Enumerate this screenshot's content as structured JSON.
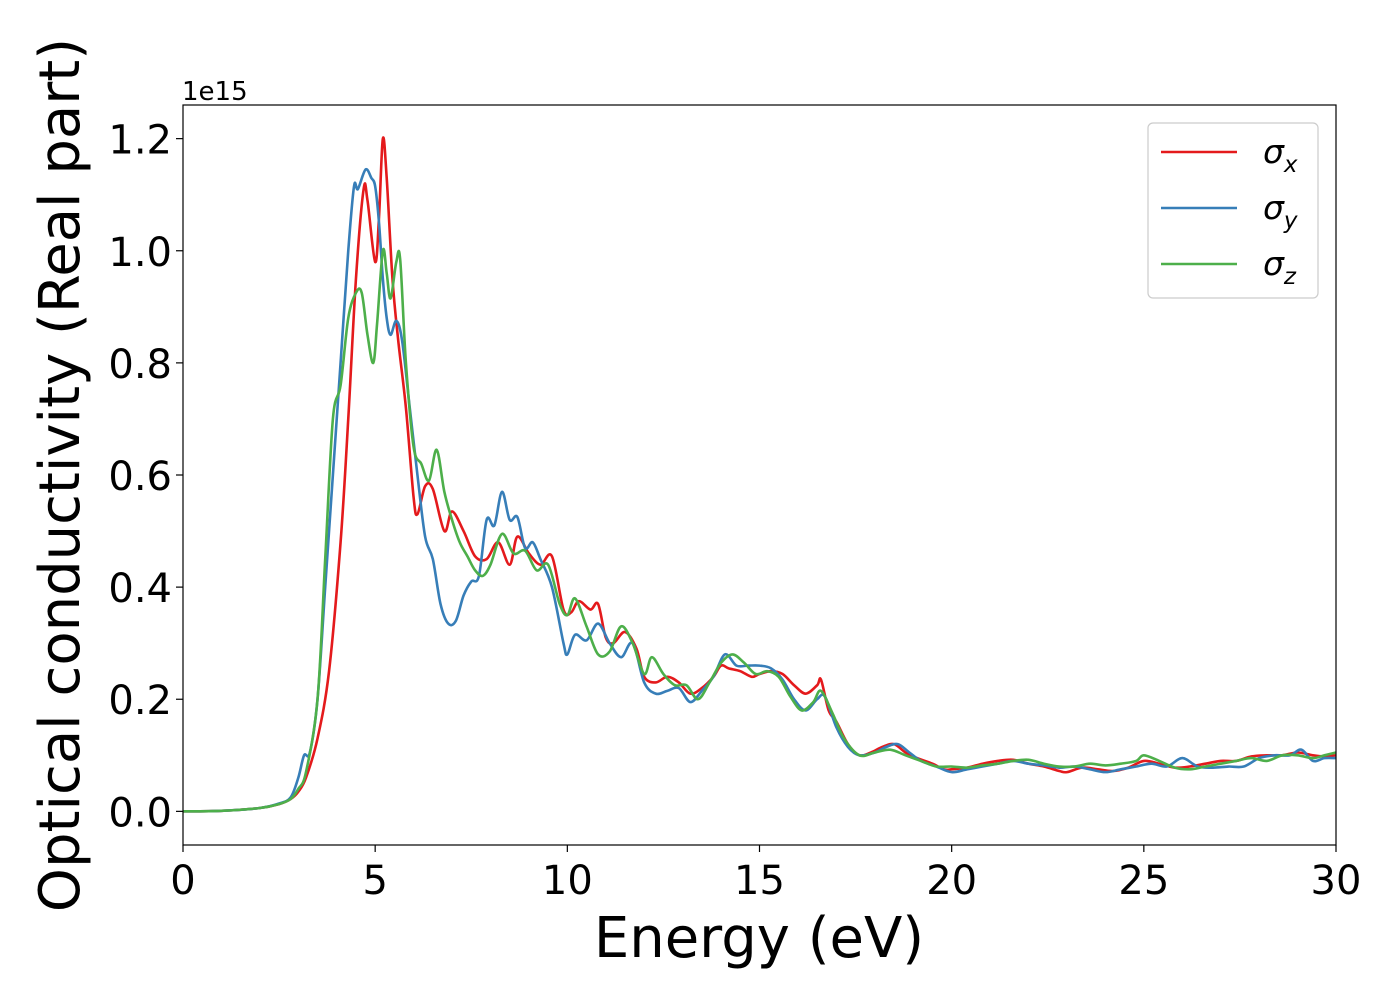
{
  "chart_data": {
    "type": "line",
    "xlabel": "Energy (eV)",
    "ylabel": "Optical conductivity (Real part)",
    "offset_label": "1e15",
    "xlim": [
      0,
      30
    ],
    "ylim": [
      -0.06,
      1.26
    ],
    "x_ticks": [
      0,
      5,
      10,
      15,
      20,
      25,
      30
    ],
    "x_tick_labels": [
      "0",
      "5",
      "10",
      "15",
      "20",
      "25",
      "30"
    ],
    "y_ticks": [
      0.0,
      0.2,
      0.4,
      0.6,
      0.8,
      1.0,
      1.2
    ],
    "y_tick_labels": [
      "0.0",
      "0.2",
      "0.4",
      "0.6",
      "0.8",
      "1.0",
      "1.2"
    ],
    "grid": false,
    "legend_position": "top-right",
    "series": [
      {
        "name": "σx",
        "name_main": "σ",
        "name_sub": "x",
        "color": "#e41a1c",
        "points": [
          [
            0,
            0
          ],
          [
            1,
            0.001
          ],
          [
            2,
            0.006
          ],
          [
            2.5,
            0.013
          ],
          [
            2.8,
            0.022
          ],
          [
            3.0,
            0.035
          ],
          [
            3.2,
            0.06
          ],
          [
            3.5,
            0.13
          ],
          [
            3.8,
            0.25
          ],
          [
            4.1,
            0.48
          ],
          [
            4.3,
            0.7
          ],
          [
            4.5,
            0.95
          ],
          [
            4.7,
            1.11
          ],
          [
            4.8,
            1.09
          ],
          [
            5.0,
            0.98
          ],
          [
            5.1,
            1.06
          ],
          [
            5.2,
            1.2
          ],
          [
            5.3,
            1.13
          ],
          [
            5.45,
            0.95
          ],
          [
            5.6,
            0.84
          ],
          [
            5.8,
            0.72
          ],
          [
            6.0,
            0.56
          ],
          [
            6.1,
            0.53
          ],
          [
            6.3,
            0.58
          ],
          [
            6.5,
            0.575
          ],
          [
            6.8,
            0.5
          ],
          [
            7.0,
            0.535
          ],
          [
            7.3,
            0.5
          ],
          [
            7.6,
            0.455
          ],
          [
            7.9,
            0.45
          ],
          [
            8.2,
            0.48
          ],
          [
            8.5,
            0.44
          ],
          [
            8.7,
            0.49
          ],
          [
            9.0,
            0.46
          ],
          [
            9.3,
            0.44
          ],
          [
            9.6,
            0.455
          ],
          [
            9.9,
            0.36
          ],
          [
            10.1,
            0.355
          ],
          [
            10.3,
            0.375
          ],
          [
            10.6,
            0.36
          ],
          [
            10.8,
            0.37
          ],
          [
            11.0,
            0.31
          ],
          [
            11.2,
            0.3
          ],
          [
            11.5,
            0.32
          ],
          [
            11.8,
            0.29
          ],
          [
            12.0,
            0.24
          ],
          [
            12.3,
            0.23
          ],
          [
            12.6,
            0.24
          ],
          [
            12.9,
            0.23
          ],
          [
            13.2,
            0.21
          ],
          [
            13.5,
            0.22
          ],
          [
            13.8,
            0.24
          ],
          [
            14.0,
            0.26
          ],
          [
            14.2,
            0.255
          ],
          [
            14.5,
            0.25
          ],
          [
            14.8,
            0.24
          ],
          [
            15.0,
            0.245
          ],
          [
            15.3,
            0.25
          ],
          [
            15.6,
            0.245
          ],
          [
            15.9,
            0.225
          ],
          [
            16.2,
            0.21
          ],
          [
            16.5,
            0.225
          ],
          [
            16.6,
            0.235
          ],
          [
            16.8,
            0.18
          ],
          [
            17.0,
            0.16
          ],
          [
            17.3,
            0.12
          ],
          [
            17.6,
            0.1
          ],
          [
            17.9,
            0.105
          ],
          [
            18.2,
            0.115
          ],
          [
            18.5,
            0.12
          ],
          [
            18.8,
            0.105
          ],
          [
            19.1,
            0.095
          ],
          [
            19.5,
            0.085
          ],
          [
            19.8,
            0.075
          ],
          [
            20.0,
            0.075
          ],
          [
            20.4,
            0.078
          ],
          [
            20.8,
            0.085
          ],
          [
            21.2,
            0.09
          ],
          [
            21.6,
            0.092
          ],
          [
            22.0,
            0.085
          ],
          [
            22.4,
            0.08
          ],
          [
            22.8,
            0.072
          ],
          [
            23.0,
            0.07
          ],
          [
            23.4,
            0.078
          ],
          [
            23.8,
            0.075
          ],
          [
            24.2,
            0.072
          ],
          [
            24.6,
            0.078
          ],
          [
            25.0,
            0.09
          ],
          [
            25.4,
            0.085
          ],
          [
            25.8,
            0.078
          ],
          [
            26.2,
            0.08
          ],
          [
            26.6,
            0.085
          ],
          [
            27.0,
            0.09
          ],
          [
            27.4,
            0.09
          ],
          [
            27.8,
            0.098
          ],
          [
            28.2,
            0.1
          ],
          [
            28.6,
            0.1
          ],
          [
            29.0,
            0.105
          ],
          [
            29.4,
            0.1
          ],
          [
            29.7,
            0.098
          ],
          [
            30.0,
            0.1
          ]
        ]
      },
      {
        "name": "σy",
        "name_main": "σ",
        "name_sub": "y",
        "color": "#377eb8",
        "points": [
          [
            0,
            0
          ],
          [
            1,
            0.001
          ],
          [
            2,
            0.006
          ],
          [
            2.5,
            0.014
          ],
          [
            2.8,
            0.025
          ],
          [
            3.0,
            0.06
          ],
          [
            3.15,
            0.1
          ],
          [
            3.3,
            0.105
          ],
          [
            3.5,
            0.2
          ],
          [
            3.7,
            0.4
          ],
          [
            3.9,
            0.6
          ],
          [
            4.1,
            0.8
          ],
          [
            4.3,
            1.0
          ],
          [
            4.45,
            1.115
          ],
          [
            4.55,
            1.11
          ],
          [
            4.75,
            1.145
          ],
          [
            4.9,
            1.13
          ],
          [
            5.0,
            1.115
          ],
          [
            5.1,
            1.05
          ],
          [
            5.2,
            0.95
          ],
          [
            5.3,
            0.88
          ],
          [
            5.4,
            0.85
          ],
          [
            5.55,
            0.875
          ],
          [
            5.7,
            0.84
          ],
          [
            5.9,
            0.72
          ],
          [
            6.1,
            0.6
          ],
          [
            6.3,
            0.49
          ],
          [
            6.5,
            0.45
          ],
          [
            6.7,
            0.37
          ],
          [
            6.9,
            0.335
          ],
          [
            7.1,
            0.34
          ],
          [
            7.3,
            0.385
          ],
          [
            7.5,
            0.41
          ],
          [
            7.7,
            0.42
          ],
          [
            7.9,
            0.52
          ],
          [
            8.1,
            0.51
          ],
          [
            8.3,
            0.57
          ],
          [
            8.5,
            0.52
          ],
          [
            8.7,
            0.525
          ],
          [
            8.9,
            0.47
          ],
          [
            9.1,
            0.48
          ],
          [
            9.3,
            0.45
          ],
          [
            9.6,
            0.4
          ],
          [
            9.9,
            0.3
          ],
          [
            10.0,
            0.28
          ],
          [
            10.2,
            0.315
          ],
          [
            10.5,
            0.305
          ],
          [
            10.8,
            0.335
          ],
          [
            11.1,
            0.3
          ],
          [
            11.4,
            0.275
          ],
          [
            11.7,
            0.3
          ],
          [
            12.0,
            0.23
          ],
          [
            12.3,
            0.21
          ],
          [
            12.6,
            0.215
          ],
          [
            12.9,
            0.22
          ],
          [
            13.2,
            0.195
          ],
          [
            13.5,
            0.215
          ],
          [
            13.8,
            0.24
          ],
          [
            14.1,
            0.28
          ],
          [
            14.4,
            0.26
          ],
          [
            14.7,
            0.26
          ],
          [
            15.0,
            0.26
          ],
          [
            15.3,
            0.255
          ],
          [
            15.6,
            0.235
          ],
          [
            15.9,
            0.2
          ],
          [
            16.2,
            0.18
          ],
          [
            16.5,
            0.2
          ],
          [
            16.7,
            0.205
          ],
          [
            17.0,
            0.15
          ],
          [
            17.3,
            0.115
          ],
          [
            17.6,
            0.1
          ],
          [
            18.0,
            0.105
          ],
          [
            18.3,
            0.115
          ],
          [
            18.6,
            0.12
          ],
          [
            18.9,
            0.105
          ],
          [
            19.2,
            0.09
          ],
          [
            19.6,
            0.08
          ],
          [
            20.0,
            0.07
          ],
          [
            20.4,
            0.075
          ],
          [
            20.8,
            0.08
          ],
          [
            21.2,
            0.085
          ],
          [
            21.6,
            0.09
          ],
          [
            22.0,
            0.085
          ],
          [
            22.4,
            0.082
          ],
          [
            22.8,
            0.078
          ],
          [
            23.2,
            0.08
          ],
          [
            23.6,
            0.075
          ],
          [
            24.0,
            0.07
          ],
          [
            24.4,
            0.075
          ],
          [
            24.8,
            0.08
          ],
          [
            25.2,
            0.085
          ],
          [
            25.6,
            0.08
          ],
          [
            26.0,
            0.095
          ],
          [
            26.4,
            0.08
          ],
          [
            26.8,
            0.078
          ],
          [
            27.2,
            0.08
          ],
          [
            27.6,
            0.08
          ],
          [
            28.0,
            0.095
          ],
          [
            28.4,
            0.1
          ],
          [
            28.8,
            0.1
          ],
          [
            29.1,
            0.11
          ],
          [
            29.4,
            0.09
          ],
          [
            29.7,
            0.095
          ],
          [
            30.0,
            0.095
          ]
        ]
      },
      {
        "name": "σz",
        "name_main": "σ",
        "name_sub": "z",
        "color": "#4daf4a",
        "points": [
          [
            0,
            0
          ],
          [
            1,
            0.001
          ],
          [
            2,
            0.006
          ],
          [
            2.5,
            0.013
          ],
          [
            2.8,
            0.022
          ],
          [
            3.0,
            0.04
          ],
          [
            3.2,
            0.07
          ],
          [
            3.5,
            0.2
          ],
          [
            3.7,
            0.45
          ],
          [
            3.9,
            0.7
          ],
          [
            4.1,
            0.76
          ],
          [
            4.3,
            0.88
          ],
          [
            4.5,
            0.925
          ],
          [
            4.65,
            0.925
          ],
          [
            4.8,
            0.85
          ],
          [
            4.95,
            0.8
          ],
          [
            5.05,
            0.87
          ],
          [
            5.2,
            1.0
          ],
          [
            5.3,
            0.96
          ],
          [
            5.4,
            0.915
          ],
          [
            5.55,
            0.98
          ],
          [
            5.65,
            0.985
          ],
          [
            5.8,
            0.8
          ],
          [
            6.0,
            0.65
          ],
          [
            6.2,
            0.62
          ],
          [
            6.4,
            0.59
          ],
          [
            6.6,
            0.645
          ],
          [
            6.8,
            0.57
          ],
          [
            7.0,
            0.52
          ],
          [
            7.2,
            0.48
          ],
          [
            7.4,
            0.455
          ],
          [
            7.6,
            0.43
          ],
          [
            7.8,
            0.42
          ],
          [
            8.0,
            0.44
          ],
          [
            8.3,
            0.495
          ],
          [
            8.6,
            0.46
          ],
          [
            8.9,
            0.465
          ],
          [
            9.2,
            0.43
          ],
          [
            9.5,
            0.44
          ],
          [
            9.8,
            0.37
          ],
          [
            10.0,
            0.35
          ],
          [
            10.2,
            0.38
          ],
          [
            10.5,
            0.33
          ],
          [
            10.8,
            0.28
          ],
          [
            11.1,
            0.285
          ],
          [
            11.4,
            0.33
          ],
          [
            11.7,
            0.3
          ],
          [
            12.0,
            0.245
          ],
          [
            12.2,
            0.275
          ],
          [
            12.5,
            0.245
          ],
          [
            12.8,
            0.225
          ],
          [
            13.1,
            0.225
          ],
          [
            13.4,
            0.2
          ],
          [
            13.7,
            0.23
          ],
          [
            14.0,
            0.265
          ],
          [
            14.3,
            0.28
          ],
          [
            14.6,
            0.265
          ],
          [
            14.9,
            0.245
          ],
          [
            15.2,
            0.25
          ],
          [
            15.5,
            0.24
          ],
          [
            15.8,
            0.205
          ],
          [
            16.1,
            0.18
          ],
          [
            16.4,
            0.195
          ],
          [
            16.6,
            0.215
          ],
          [
            16.9,
            0.175
          ],
          [
            17.2,
            0.13
          ],
          [
            17.6,
            0.1
          ],
          [
            18.0,
            0.105
          ],
          [
            18.4,
            0.11
          ],
          [
            18.8,
            0.1
          ],
          [
            19.2,
            0.09
          ],
          [
            19.6,
            0.08
          ],
          [
            20.0,
            0.08
          ],
          [
            20.4,
            0.078
          ],
          [
            20.8,
            0.082
          ],
          [
            21.2,
            0.085
          ],
          [
            21.6,
            0.09
          ],
          [
            22.0,
            0.092
          ],
          [
            22.4,
            0.085
          ],
          [
            22.8,
            0.08
          ],
          [
            23.2,
            0.08
          ],
          [
            23.6,
            0.085
          ],
          [
            24.0,
            0.082
          ],
          [
            24.4,
            0.085
          ],
          [
            24.8,
            0.09
          ],
          [
            25.0,
            0.1
          ],
          [
            25.4,
            0.09
          ],
          [
            25.8,
            0.078
          ],
          [
            26.2,
            0.075
          ],
          [
            26.6,
            0.08
          ],
          [
            27.0,
            0.085
          ],
          [
            27.4,
            0.09
          ],
          [
            27.8,
            0.095
          ],
          [
            28.2,
            0.09
          ],
          [
            28.6,
            0.1
          ],
          [
            29.0,
            0.1
          ],
          [
            29.4,
            0.095
          ],
          [
            29.7,
            0.1
          ],
          [
            30.0,
            0.105
          ]
        ]
      }
    ]
  }
}
